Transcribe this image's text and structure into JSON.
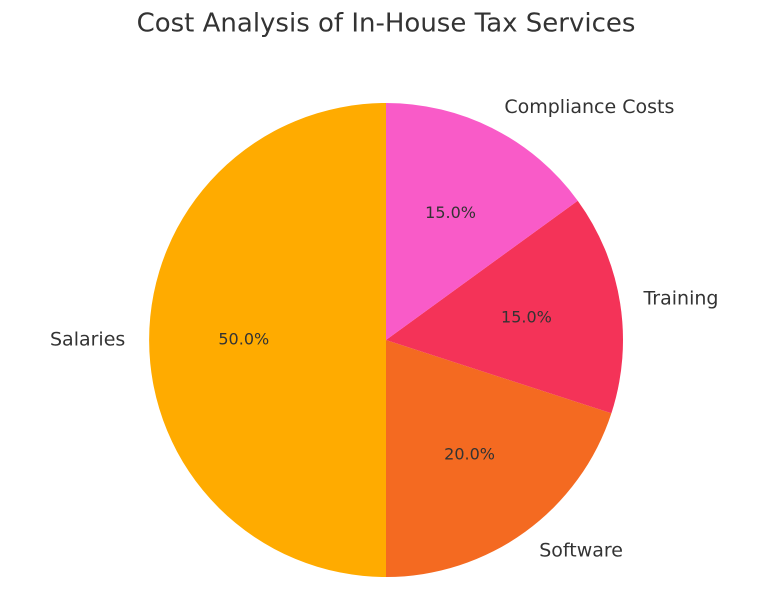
{
  "chart_data": {
    "type": "pie",
    "title": "Cost Analysis of In-House Tax Services",
    "categories": [
      "Salaries",
      "Software",
      "Training",
      "Compliance Costs"
    ],
    "values": [
      50,
      20,
      15,
      15
    ],
    "value_labels": [
      "50.0%",
      "20.0%",
      "15.0%",
      "15.0%"
    ],
    "colors": [
      "#ffab00",
      "#f46a21",
      "#f43358",
      "#f95bc8"
    ]
  }
}
